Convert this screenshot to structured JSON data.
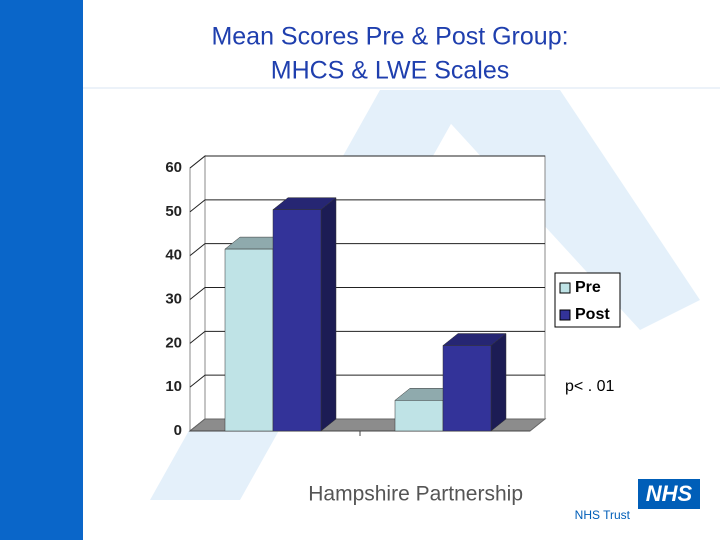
{
  "chart_data": {
    "type": "bar3d",
    "title": [
      "Mean Scores Pre & Post Group:",
      "MHCS & LWE Scales"
    ],
    "categories": [
      null,
      null
    ],
    "series": [
      {
        "name": "Pre",
        "color": "#bfe3e6",
        "values": [
          41.5,
          7
        ]
      },
      {
        "name": "Post",
        "color": "#333399",
        "values": [
          50.5,
          19.5
        ]
      }
    ],
    "ylim": [
      0,
      60
    ],
    "yticks": [
      0,
      10,
      20,
      30,
      40,
      50,
      60
    ],
    "grid": true,
    "legend": "right",
    "annotation": "p< . 01"
  },
  "footer": {
    "organisation": "Hampshire Partnership",
    "badge": "NHS",
    "subtitle": "NHS Trust"
  }
}
